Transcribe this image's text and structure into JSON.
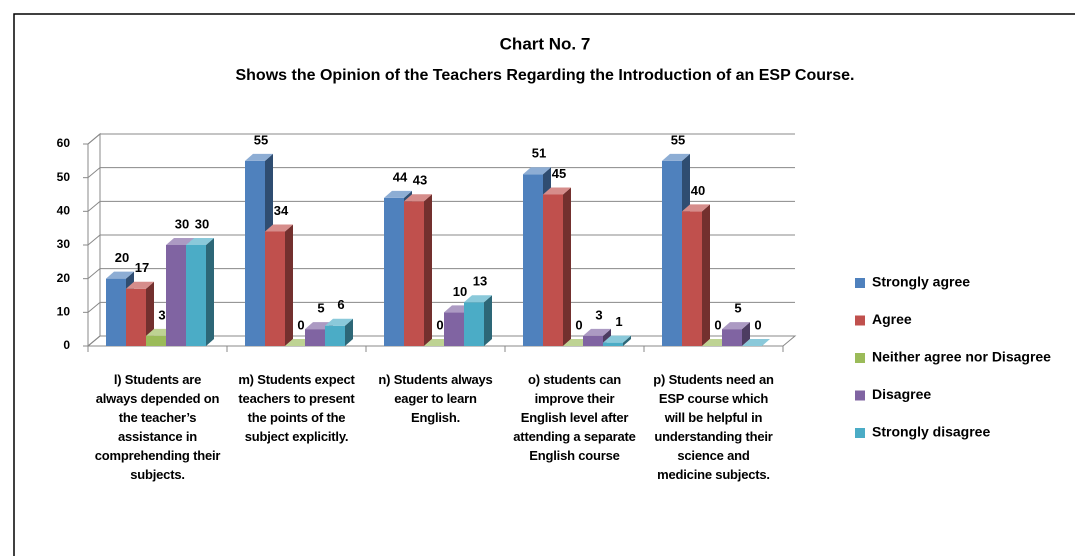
{
  "chart_data": {
    "type": "bar3d",
    "title": "Chart No. 7",
    "subtitle": "Shows the Opinion of the Teachers Regarding the Introduction of an ESP Course.",
    "categories": [
      "l) Students are always depended on the teacher’s assistance in comprehending their subjects.",
      "m) Students expect teachers to present the points of the subject explicitly.",
      "n) Students always eager to learn English.",
      "o) students can improve their English level after attending a separate English course",
      "p) Students need an ESP course which will be helpful in understanding their science and medicine subjects."
    ],
    "series": [
      {
        "name": "Strongly agree",
        "color": "#4f81bd",
        "values": [
          20,
          55,
          44,
          51,
          55
        ]
      },
      {
        "name": "Agree",
        "color": "#c0504d",
        "values": [
          17,
          34,
          43,
          45,
          40
        ]
      },
      {
        "name": "Neither agree nor Disagree",
        "color": "#9bbb59",
        "values": [
          3,
          0,
          0,
          0,
          0
        ]
      },
      {
        "name": "Disagree",
        "color": "#8064a2",
        "values": [
          30,
          5,
          10,
          3,
          5
        ]
      },
      {
        "name": "Strongly disagree",
        "color": "#4bacc6",
        "values": [
          30,
          6,
          13,
          1,
          0
        ]
      }
    ],
    "ylim": [
      0,
      60
    ],
    "yticks": [
      0,
      10,
      20,
      30,
      40,
      50,
      60
    ],
    "grid": true,
    "legend": "right"
  }
}
